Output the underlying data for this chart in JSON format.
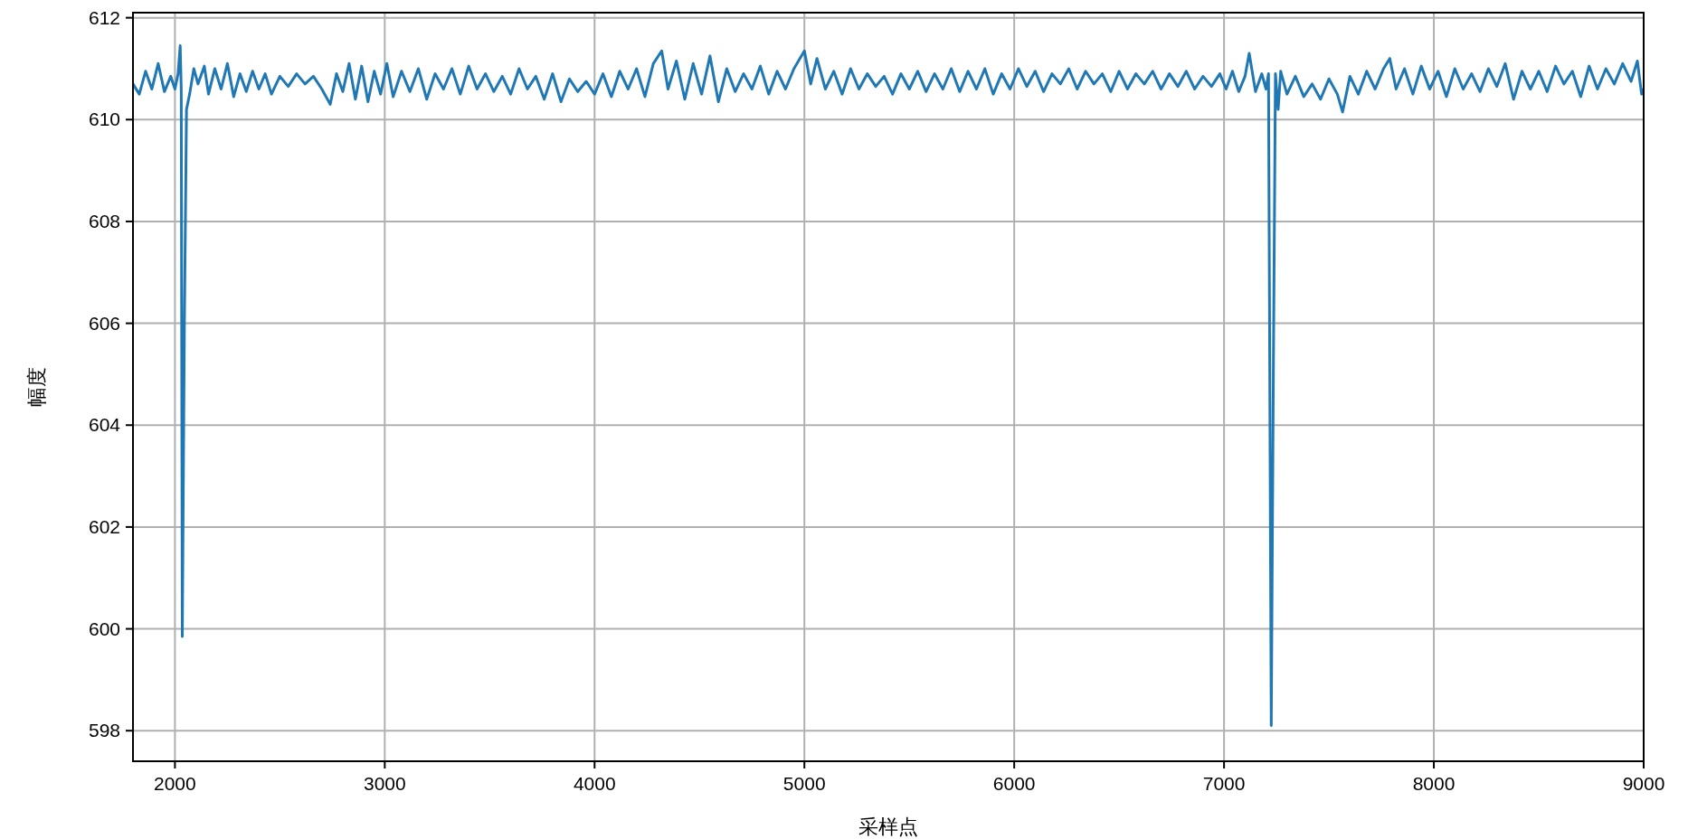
{
  "chart_data": {
    "type": "line",
    "xlabel": "采样点",
    "ylabel": "幅度",
    "xlim": [
      1800,
      9000
    ],
    "ylim": [
      597.4,
      612.1
    ],
    "xticks": [
      2000,
      3000,
      4000,
      5000,
      6000,
      7000,
      8000,
      9000
    ],
    "yticks": [
      598,
      600,
      602,
      604,
      606,
      608,
      610,
      612
    ],
    "grid": true,
    "series": [
      {
        "color": "#1f77b4",
        "x": [
          1800,
          1830,
          1860,
          1890,
          1920,
          1950,
          1980,
          2000,
          2015,
          2025,
          2030,
          2035,
          2045,
          2055,
          2070,
          2090,
          2110,
          2140,
          2160,
          2190,
          2220,
          2250,
          2280,
          2310,
          2340,
          2370,
          2400,
          2430,
          2460,
          2500,
          2540,
          2580,
          2620,
          2660,
          2700,
          2740,
          2770,
          2800,
          2830,
          2860,
          2890,
          2920,
          2950,
          2980,
          3010,
          3040,
          3080,
          3120,
          3160,
          3200,
          3240,
          3280,
          3320,
          3360,
          3400,
          3440,
          3480,
          3520,
          3560,
          3600,
          3640,
          3680,
          3720,
          3760,
          3800,
          3840,
          3880,
          3920,
          3960,
          4000,
          4040,
          4080,
          4120,
          4160,
          4200,
          4240,
          4280,
          4320,
          4350,
          4390,
          4430,
          4470,
          4510,
          4550,
          4590,
          4630,
          4670,
          4710,
          4750,
          4790,
          4830,
          4870,
          4910,
          4950,
          5000,
          5030,
          5060,
          5100,
          5140,
          5180,
          5220,
          5260,
          5300,
          5340,
          5380,
          5420,
          5460,
          5500,
          5540,
          5580,
          5620,
          5660,
          5700,
          5740,
          5780,
          5820,
          5860,
          5900,
          5940,
          5980,
          6020,
          6060,
          6100,
          6140,
          6180,
          6220,
          6260,
          6300,
          6340,
          6380,
          6420,
          6460,
          6500,
          6540,
          6580,
          6620,
          6660,
          6700,
          6740,
          6780,
          6820,
          6860,
          6900,
          6940,
          6980,
          7010,
          7040,
          7070,
          7100,
          7120,
          7150,
          7180,
          7200,
          7212,
          7225,
          7235,
          7245,
          7258,
          7270,
          7300,
          7340,
          7380,
          7420,
          7460,
          7500,
          7540,
          7565,
          7600,
          7640,
          7680,
          7720,
          7760,
          7790,
          7820,
          7860,
          7900,
          7940,
          7980,
          8020,
          8060,
          8100,
          8140,
          8180,
          8220,
          8260,
          8300,
          8340,
          8380,
          8420,
          8460,
          8500,
          8540,
          8580,
          8620,
          8660,
          8700,
          8740,
          8780,
          8820,
          8860,
          8900,
          8940,
          8970,
          8990,
          9000
        ],
        "values": [
          610.7,
          610.5,
          610.95,
          610.6,
          611.1,
          610.55,
          610.85,
          610.6,
          610.9,
          611.45,
          610.6,
          599.85,
          606,
          610.2,
          610.5,
          611.0,
          610.7,
          611.05,
          610.5,
          611.0,
          610.6,
          611.1,
          610.45,
          610.9,
          610.55,
          610.95,
          610.6,
          610.9,
          610.5,
          610.85,
          610.65,
          610.9,
          610.7,
          610.85,
          610.6,
          610.3,
          610.9,
          610.55,
          611.1,
          610.4,
          611.05,
          610.35,
          610.95,
          610.5,
          611.1,
          610.45,
          610.95,
          610.55,
          611.0,
          610.4,
          610.9,
          610.6,
          611.0,
          610.5,
          611.05,
          610.6,
          610.9,
          610.55,
          610.85,
          610.5,
          611.0,
          610.6,
          610.85,
          610.4,
          610.9,
          610.35,
          610.8,
          610.55,
          610.75,
          610.5,
          610.9,
          610.45,
          610.95,
          610.6,
          611.0,
          610.45,
          611.1,
          611.35,
          610.6,
          611.15,
          610.4,
          611.1,
          610.5,
          611.25,
          610.35,
          611.0,
          610.55,
          610.9,
          610.6,
          611.05,
          610.5,
          610.95,
          610.6,
          611.0,
          611.35,
          610.7,
          611.2,
          610.6,
          610.95,
          610.5,
          611.0,
          610.6,
          610.9,
          610.65,
          610.85,
          610.5,
          610.9,
          610.6,
          610.95,
          610.55,
          610.9,
          610.6,
          611.0,
          610.55,
          610.95,
          610.6,
          611.0,
          610.5,
          610.9,
          610.6,
          611.0,
          610.65,
          610.95,
          610.55,
          610.9,
          610.7,
          611.0,
          610.6,
          610.95,
          610.7,
          610.9,
          610.55,
          610.95,
          610.6,
          610.9,
          610.7,
          610.95,
          610.6,
          610.9,
          610.65,
          610.95,
          610.6,
          610.85,
          610.65,
          610.9,
          610.6,
          610.95,
          610.55,
          610.85,
          611.3,
          610.55,
          610.9,
          610.6,
          610.9,
          598.1,
          605,
          610.9,
          610.2,
          610.95,
          610.5,
          610.85,
          610.45,
          610.7,
          610.4,
          610.8,
          610.5,
          610.15,
          610.85,
          610.5,
          610.95,
          610.6,
          611.0,
          611.2,
          610.6,
          611.0,
          610.5,
          611.05,
          610.6,
          610.95,
          610.45,
          611.0,
          610.6,
          610.9,
          610.55,
          611.0,
          610.65,
          611.1,
          610.4,
          610.95,
          610.6,
          610.95,
          610.55,
          611.05,
          610.7,
          610.95,
          610.45,
          611.05,
          610.6,
          611.0,
          610.7,
          611.1,
          610.75,
          611.15,
          610.5,
          610.6
        ]
      }
    ]
  }
}
